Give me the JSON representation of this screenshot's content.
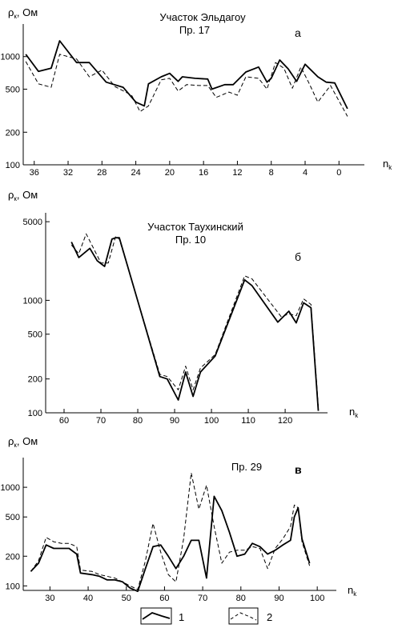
{
  "chart_data": [
    {
      "type": "line",
      "letter": "а",
      "title_lines": [
        "Участок Эльдагоу",
        "Пр. 17"
      ],
      "ylabel_main": "ρ",
      "ylabel_sub": "к",
      "ylabel_unit": ", Ом",
      "xlabel_main": "n",
      "xlabel_sub": "k",
      "y_scale": "log",
      "ylim": [
        100,
        2000
      ],
      "y_ticks": [
        100,
        200,
        500,
        1000
      ],
      "x_ticks": [
        36,
        32,
        28,
        24,
        20,
        16,
        12,
        8,
        4,
        0
      ],
      "x_reversed": true,
      "series": [
        {
          "key": "1",
          "x": [
            37,
            35.5,
            34,
            33,
            31,
            29.5,
            27.5,
            25.5,
            24,
            23,
            22.5,
            21,
            20,
            19,
            18.5,
            17,
            15.5,
            15,
            13.5,
            12.5,
            11,
            9.5,
            8.5,
            8,
            7,
            6,
            5,
            4,
            2.5,
            1.5,
            0.5,
            -1
          ],
          "y": [
            1050,
            730,
            780,
            1400,
            880,
            880,
            580,
            520,
            380,
            350,
            560,
            650,
            700,
            590,
            650,
            630,
            620,
            500,
            550,
            550,
            720,
            800,
            580,
            630,
            930,
            770,
            590,
            850,
            650,
            580,
            570,
            330
          ]
        },
        {
          "key": "2",
          "x": [
            37,
            35.5,
            34,
            33,
            31,
            29.5,
            28,
            26.5,
            24.5,
            23.5,
            22.5,
            21,
            20,
            19,
            18,
            16.5,
            15.5,
            14.5,
            13,
            12,
            11,
            9.5,
            8.5,
            7.5,
            6.5,
            5.5,
            4.5,
            3.5,
            2.5,
            1,
            -1
          ],
          "y": [
            900,
            560,
            520,
            1050,
            950,
            650,
            750,
            530,
            440,
            310,
            350,
            610,
            630,
            480,
            550,
            540,
            540,
            420,
            470,
            440,
            650,
            630,
            500,
            880,
            780,
            510,
            800,
            560,
            380,
            540,
            280
          ]
        }
      ]
    },
    {
      "type": "line",
      "letter": "б",
      "title_lines": [
        "Участок Таухинский",
        "Пр. 10"
      ],
      "ylabel_main": "ρ",
      "ylabel_sub": "к",
      "ylabel_unit": ", Ом",
      "xlabel_main": "n",
      "xlabel_sub": "k",
      "y_scale": "log",
      "ylim": [
        100,
        6000
      ],
      "y_ticks": [
        100,
        200,
        500,
        1000,
        5000
      ],
      "x_ticks": [
        60,
        70,
        80,
        90,
        100,
        110,
        120
      ],
      "x_reversed": false,
      "series": [
        {
          "key": "1",
          "x": [
            62,
            64,
            67,
            69,
            71,
            73,
            74,
            75,
            86,
            88,
            91,
            93,
            95,
            97,
            101,
            109,
            111,
            118,
            121,
            123,
            125,
            127,
            129
          ],
          "y": [
            3300,
            2400,
            2900,
            2250,
            2000,
            3500,
            3600,
            3600,
            210,
            200,
            130,
            230,
            140,
            230,
            320,
            1520,
            1350,
            640,
            800,
            630,
            950,
            860,
            104
          ]
        },
        {
          "key": "2",
          "x": [
            62,
            64,
            66,
            68,
            70,
            72,
            74,
            75,
            86,
            88,
            91,
            93,
            95,
            97,
            101,
            109,
            111,
            119,
            121,
            123,
            125,
            127,
            129
          ],
          "y": [
            3100,
            2600,
            3900,
            2900,
            2150,
            2150,
            3700,
            3500,
            220,
            210,
            160,
            260,
            160,
            250,
            330,
            1650,
            1550,
            710,
            760,
            730,
            1030,
            920,
            114
          ]
        }
      ]
    },
    {
      "type": "line",
      "letter": "в",
      "title_lines": [
        "Пр. 29"
      ],
      "ylabel_main": "ρ",
      "ylabel_sub": "к",
      "ylabel_unit": ", Ом",
      "xlabel_main": "n",
      "xlabel_sub": "k",
      "y_scale": "log",
      "ylim": [
        90,
        2000
      ],
      "y_ticks": [
        100,
        200,
        500,
        1000
      ],
      "x_ticks": [
        30,
        40,
        50,
        60,
        70,
        80,
        90,
        100
      ],
      "x_reversed": false,
      "series": [
        {
          "key": "1",
          "x": [
            25,
            27,
            29,
            31,
            33,
            35,
            37,
            38,
            41,
            43,
            45,
            47,
            49,
            51,
            53,
            55,
            57,
            59,
            61,
            63,
            65,
            67,
            69,
            71,
            73,
            75,
            77,
            79,
            81,
            83,
            85,
            87,
            89,
            91,
            93,
            94,
            95,
            96,
            98
          ],
          "y": [
            140,
            170,
            260,
            240,
            240,
            240,
            210,
            135,
            130,
            125,
            115,
            115,
            110,
            95,
            88,
            150,
            250,
            260,
            200,
            150,
            200,
            290,
            290,
            120,
            810,
            580,
            350,
            200,
            210,
            270,
            250,
            210,
            230,
            260,
            290,
            500,
            620,
            300,
            170
          ]
        },
        {
          "key": "2",
          "x": [
            25,
            27,
            29,
            31,
            33,
            35,
            37,
            38,
            41,
            43,
            45,
            47,
            49,
            51,
            53,
            55,
            57,
            59,
            61,
            63,
            65,
            67,
            69,
            71,
            73,
            75,
            77,
            79,
            81,
            83,
            85,
            87,
            89,
            91,
            93,
            94,
            95,
            96,
            98
          ],
          "y": [
            140,
            180,
            310,
            280,
            270,
            270,
            250,
            145,
            140,
            130,
            125,
            120,
            110,
            100,
            92,
            180,
            430,
            220,
            130,
            110,
            300,
            1400,
            600,
            1050,
            400,
            170,
            220,
            230,
            230,
            250,
            240,
            150,
            240,
            300,
            400,
            660,
            620,
            280,
            160
          ]
        }
      ]
    }
  ],
  "legend": [
    {
      "key": "1",
      "label": "1",
      "style": "solid"
    },
    {
      "key": "2",
      "label": "2",
      "style": "dashed"
    }
  ]
}
